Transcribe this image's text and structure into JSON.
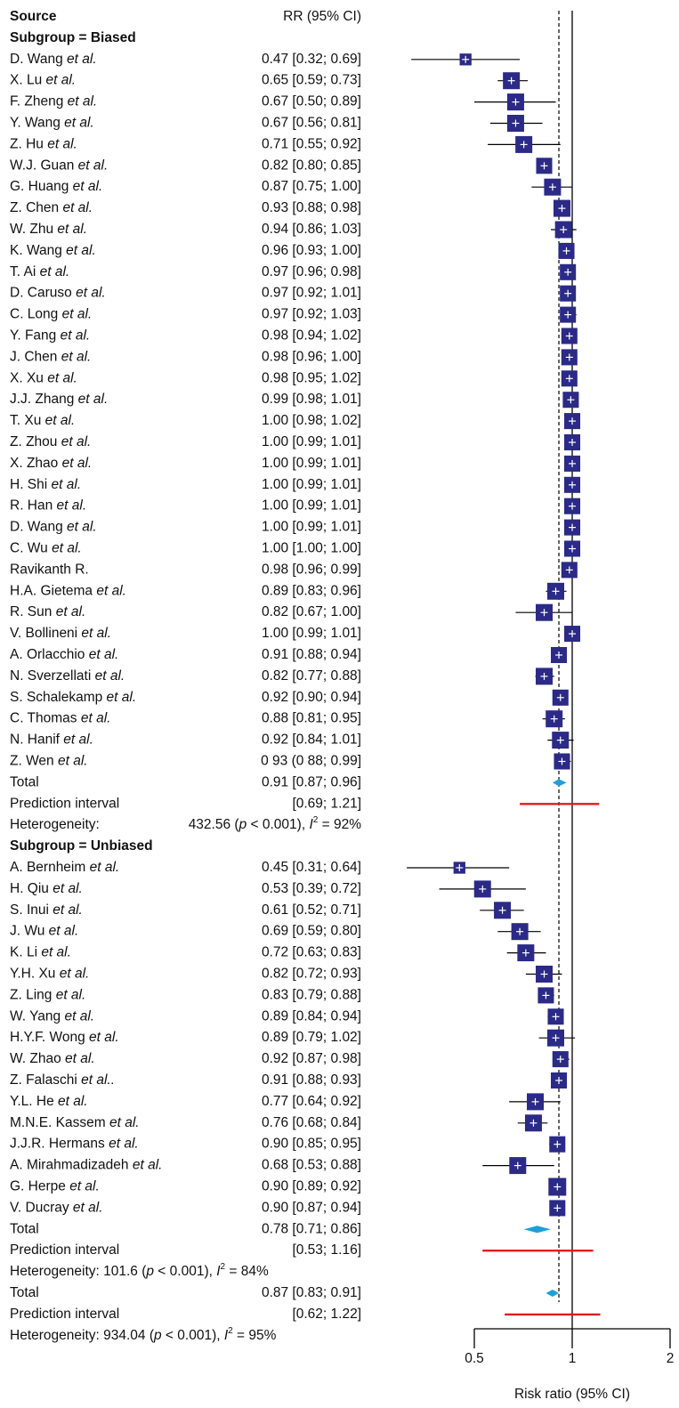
{
  "chart_data": {
    "type": "forest",
    "columns": {
      "source": "Source",
      "effect": "RR (95% CI)"
    },
    "xlabel": "Risk ratio (95% CI)",
    "x_scale": "log",
    "xlim": [
      0.5,
      2
    ],
    "xticks": [
      "0.5",
      "1",
      "2"
    ],
    "null_value": 1,
    "overall_reference": 0.91,
    "colors": {
      "box": "#2b2a87",
      "diamond": "#1e9fd8",
      "prediction": "#e01b1b",
      "line": "#000000"
    },
    "subgroups": [
      {
        "heading": "Subgroup = Biased",
        "studies": [
          {
            "name": "D. Wang",
            "etal": "et al.",
            "ci_text": "0.47 [0.32; 0.69]",
            "rr": 0.47,
            "lo": 0.32,
            "hi": 0.69,
            "w": 0.7
          },
          {
            "name": "X. Lu",
            "etal": "et al.",
            "ci_text": "0.65 [0.59; 0.73]",
            "rr": 0.65,
            "lo": 0.59,
            "hi": 0.73,
            "w": 1.0
          },
          {
            "name": "F. Zheng",
            "etal": "et al.",
            "ci_text": "0.67 [0.50; 0.89]",
            "rr": 0.67,
            "lo": 0.5,
            "hi": 0.89,
            "w": 1.0
          },
          {
            "name": "Y. Wang",
            "etal": "et al.",
            "ci_text": "0.67 [0.56; 0.81]",
            "rr": 0.67,
            "lo": 0.56,
            "hi": 0.81,
            "w": 1.0
          },
          {
            "name": "Z. Hu",
            "etal": "et al.",
            "ci_text": "0.71 [0.55; 0.92]",
            "rr": 0.71,
            "lo": 0.55,
            "hi": 0.92,
            "w": 1.0
          },
          {
            "name": "W.J. Guan",
            "etal": "et al.",
            "ci_text": "0.82 [0.80; 0.85]",
            "rr": 0.82,
            "lo": 0.8,
            "hi": 0.85,
            "w": 0.95
          },
          {
            "name": "G. Huang",
            "etal": "et al.",
            "ci_text": "0.87 [0.75; 1.00]",
            "rr": 0.87,
            "lo": 0.75,
            "hi": 1.0,
            "w": 1.0
          },
          {
            "name": "Z. Chen",
            "etal": "et al.",
            "ci_text": "0.93 [0.88; 0.98]",
            "rr": 0.93,
            "lo": 0.88,
            "hi": 0.98,
            "w": 1.0
          },
          {
            "name": "W. Zhu",
            "etal": "et al.",
            "ci_text": "0.94 [0.86; 1.03]",
            "rr": 0.94,
            "lo": 0.86,
            "hi": 1.03,
            "w": 1.0
          },
          {
            "name": "K. Wang",
            "etal": "et al.",
            "ci_text": "0.96 [0.93; 1.00]",
            "rr": 0.96,
            "lo": 0.93,
            "hi": 1.0,
            "w": 0.95
          },
          {
            "name": "T. Ai",
            "etal": "et al.",
            "ci_text": "0.97 [0.96; 0.98]",
            "rr": 0.97,
            "lo": 0.96,
            "hi": 0.98,
            "w": 0.95
          },
          {
            "name": "D. Caruso",
            "etal": "et al.",
            "ci_text": "0.97 [0.92; 1.01]",
            "rr": 0.97,
            "lo": 0.92,
            "hi": 1.01,
            "w": 0.95
          },
          {
            "name": "C. Long",
            "etal": "et al.",
            "ci_text": "0.97 [0.92; 1.03]",
            "rr": 0.97,
            "lo": 0.92,
            "hi": 1.03,
            "w": 0.95
          },
          {
            "name": "Y. Fang",
            "etal": "et al.",
            "ci_text": "0.98 [0.94; 1.02]",
            "rr": 0.98,
            "lo": 0.94,
            "hi": 1.02,
            "w": 0.95
          },
          {
            "name": "J. Chen",
            "etal": "et al.",
            "ci_text": "0.98 [0.96; 1.00]",
            "rr": 0.98,
            "lo": 0.96,
            "hi": 1.0,
            "w": 0.95
          },
          {
            "name": "X. Xu",
            "etal": "et al.",
            "ci_text": "0.98 [0.95; 1.02]",
            "rr": 0.98,
            "lo": 0.95,
            "hi": 1.02,
            "w": 0.95
          },
          {
            "name": "J.J. Zhang",
            "etal": "et al.",
            "ci_text": "0.99 [0.98; 1.01]",
            "rr": 0.99,
            "lo": 0.98,
            "hi": 1.01,
            "w": 0.95
          },
          {
            "name": "T. Xu",
            "etal": "et al.",
            "ci_text": "1.00 [0.98; 1.02]",
            "rr": 1.0,
            "lo": 0.98,
            "hi": 1.02,
            "w": 0.95
          },
          {
            "name": "Z. Zhou",
            "etal": "et al.",
            "ci_text": "1.00 [0.99; 1.01]",
            "rr": 1.0,
            "lo": 0.99,
            "hi": 1.01,
            "w": 0.95
          },
          {
            "name": "X. Zhao",
            "etal": "et al.",
            "ci_text": "1.00 [0.99; 1.01]",
            "rr": 1.0,
            "lo": 0.99,
            "hi": 1.01,
            "w": 0.95
          },
          {
            "name": "H. Shi",
            "etal": "et al.",
            "ci_text": "1.00 [0.99; 1.01]",
            "rr": 1.0,
            "lo": 0.99,
            "hi": 1.01,
            "w": 0.95
          },
          {
            "name": "R. Han",
            "etal": "et al.",
            "ci_text": "1.00 [0.99; 1.01]",
            "rr": 1.0,
            "lo": 0.99,
            "hi": 1.01,
            "w": 0.95
          },
          {
            "name": "D. Wang",
            "etal": "et al.",
            "ci_text": "1.00 [0.99; 1.01]",
            "rr": 1.0,
            "lo": 0.99,
            "hi": 1.01,
            "w": 0.95
          },
          {
            "name": "C. Wu",
            "etal": "et al.",
            "ci_text": "1.00 [1.00; 1.00]",
            "rr": 1.0,
            "lo": 1.0,
            "hi": 1.0,
            "w": 0.95
          },
          {
            "name": "Ravikanth R.",
            "etal": "",
            "ci_text": "0.98 [0.96; 0.99]",
            "rr": 0.98,
            "lo": 0.96,
            "hi": 0.99,
            "w": 0.95
          },
          {
            "name": "H.A. Gietema",
            "etal": "et al.",
            "ci_text": "0.89 [0.83; 0.96]",
            "rr": 0.89,
            "lo": 0.83,
            "hi": 0.96,
            "w": 1.0
          },
          {
            "name": "R. Sun",
            "etal": "et al.",
            "ci_text": "0.82 [0.67; 1.00]",
            "rr": 0.82,
            "lo": 0.67,
            "hi": 1.0,
            "w": 1.0
          },
          {
            "name": "V. Bollineni",
            "etal": "et al.",
            "ci_text": "1.00 [0.99; 1.01]",
            "rr": 1.0,
            "lo": 0.99,
            "hi": 1.01,
            "w": 0.95
          },
          {
            "name": "A. Orlacchio",
            "etal": "et al.",
            "ci_text": "0.91 [0.88; 0.94]",
            "rr": 0.91,
            "lo": 0.88,
            "hi": 0.94,
            "w": 0.95
          },
          {
            "name": "N. Sverzellati",
            "etal": "et al.",
            "ci_text": "0.82 [0.77; 0.88]",
            "rr": 0.82,
            "lo": 0.77,
            "hi": 0.88,
            "w": 1.0
          },
          {
            "name": "S. Schalekamp",
            "etal": "et al.",
            "ci_text": "0.92 [0.90; 0.94]",
            "rr": 0.92,
            "lo": 0.9,
            "hi": 0.94,
            "w": 0.95
          },
          {
            "name": "C. Thomas",
            "etal": "et al.",
            "ci_text": "0.88 [0.81; 0.95]",
            "rr": 0.88,
            "lo": 0.81,
            "hi": 0.95,
            "w": 1.0
          },
          {
            "name": "N. Hanif",
            "etal": "et al.",
            "ci_text": "0.92 [0.84; 1.01]",
            "rr": 0.92,
            "lo": 0.84,
            "hi": 1.01,
            "w": 1.0
          },
          {
            "name": "Z. Wen",
            "etal": "et al.",
            "ci_text": "0 93 (0 88; 0.99]",
            "rr": 0.93,
            "lo": 0.88,
            "hi": 0.99,
            "w": 0.95
          }
        ],
        "total": {
          "label": "Total",
          "ci_text": "0.91 [0.87; 0.96]",
          "rr": 0.91,
          "lo": 0.87,
          "hi": 0.96
        },
        "prediction": {
          "label": "Prediction interval",
          "ci_text": "[0.69; 1.21]",
          "lo": 0.69,
          "hi": 1.21
        },
        "heterogeneity": {
          "label": "Heterogeneity:",
          "value": "432.56",
          "pvalue": "< 0.001), ",
          "i2": " = 92%"
        }
      },
      {
        "heading": "Subgroup = Unbiased",
        "studies": [
          {
            "name": "A. Bernheim",
            "etal": "et al.",
            "ci_text": "0.45 [0.31; 0.64]",
            "rr": 0.45,
            "lo": 0.31,
            "hi": 0.64,
            "w": 0.7
          },
          {
            "name": "H. Qiu",
            "etal": "et al.",
            "ci_text": "0.53 [0.39; 0.72]",
            "rr": 0.53,
            "lo": 0.39,
            "hi": 0.72,
            "w": 1.0
          },
          {
            "name": "S. Inui",
            "etal": "et al.",
            "ci_text": "0.61 [0.52; 0.71]",
            "rr": 0.61,
            "lo": 0.52,
            "hi": 0.71,
            "w": 1.0
          },
          {
            "name": "J. Wu",
            "etal": "et al.",
            "ci_text": "0.69 [0.59; 0.80]",
            "rr": 0.69,
            "lo": 0.59,
            "hi": 0.8,
            "w": 1.0
          },
          {
            "name": "K. Li",
            "etal": "et al.",
            "ci_text": "0.72 [0.63; 0.83]",
            "rr": 0.72,
            "lo": 0.63,
            "hi": 0.83,
            "w": 1.0
          },
          {
            "name": "Y.H. Xu",
            "etal": "et al.",
            "ci_text": "0.82 [0.72; 0.93]",
            "rr": 0.82,
            "lo": 0.72,
            "hi": 0.93,
            "w": 1.0
          },
          {
            "name": "Z. Ling",
            "etal": "et al.",
            "ci_text": "0.83 [0.79; 0.88]",
            "rr": 0.83,
            "lo": 0.79,
            "hi": 0.88,
            "w": 0.95
          },
          {
            "name": "W. Yang",
            "etal": "et al.",
            "ci_text": "0.89 [0.84; 0.94]",
            "rr": 0.89,
            "lo": 0.84,
            "hi": 0.94,
            "w": 0.95
          },
          {
            "name": "H.Y.F. Wong",
            "etal": "et al.",
            "ci_text": "0.89 [0.79; 1.02]",
            "rr": 0.89,
            "lo": 0.79,
            "hi": 1.02,
            "w": 1.0
          },
          {
            "name": "W. Zhao",
            "etal": "et al.",
            "ci_text": "0.92 [0.87; 0.98]",
            "rr": 0.92,
            "lo": 0.87,
            "hi": 0.98,
            "w": 0.95
          },
          {
            "name": "Z. Falaschi",
            "etal": "et al..",
            "ci_text": "0.91 [0.88; 0.93]",
            "rr": 0.91,
            "lo": 0.88,
            "hi": 0.93,
            "w": 0.95
          },
          {
            "name": "Y.L. He",
            "etal": "et al.",
            "ci_text": "0.77 [0.64; 0.92]",
            "rr": 0.77,
            "lo": 0.64,
            "hi": 0.92,
            "w": 1.0
          },
          {
            "name": "M.N.E. Kassem",
            "etal": "et al.",
            "ci_text": "0.76 [0.68; 0.84]",
            "rr": 0.76,
            "lo": 0.68,
            "hi": 0.84,
            "w": 1.0
          },
          {
            "name": "J.J.R. Hermans",
            "etal": "et al.",
            "ci_text": "0.90 [0.85; 0.95]",
            "rr": 0.9,
            "lo": 0.85,
            "hi": 0.95,
            "w": 0.95
          },
          {
            "name": "A. Mirahmadizadeh",
            "etal": "et al.",
            "ci_text": "0.68 [0.53; 0.88]",
            "rr": 0.68,
            "lo": 0.53,
            "hi": 0.88,
            "w": 1.0
          },
          {
            "name": "G. Herpe",
            "etal": "et al.",
            "ci_text": "0.90 [0.89; 0.92]",
            "rr": 0.9,
            "lo": 0.89,
            "hi": 0.92,
            "w": 1.05
          },
          {
            "name": "V. Ducray",
            "etal": "et al.",
            "ci_text": "0.90 [0.87; 0.94]",
            "rr": 0.9,
            "lo": 0.87,
            "hi": 0.94,
            "w": 0.95
          }
        ],
        "total": {
          "label": "Total",
          "ci_text": "0.78 [0.71; 0.86]",
          "rr": 0.78,
          "lo": 0.71,
          "hi": 0.86
        },
        "prediction": {
          "label": "Prediction interval",
          "ci_text": "[0.53; 1.16]",
          "lo": 0.53,
          "hi": 1.16
        },
        "heterogeneity": {
          "label": "Heterogeneity: ",
          "value": "101.6",
          "pvalue": "< 0.001), ",
          "i2": " = 84%"
        }
      }
    ],
    "overall": {
      "total": {
        "label": "Total",
        "ci_text": "0.87 [0.83; 0.91]",
        "rr": 0.87,
        "lo": 0.83,
        "hi": 0.91
      },
      "prediction": {
        "label": "Prediction interval",
        "ci_text": "[0.62; 1.22]",
        "lo": 0.62,
        "hi": 1.22
      },
      "heterogeneity": {
        "label": "Heterogeneity: ",
        "value": "934.04",
        "pvalue": "< 0.001), ",
        "i2": " = 95%"
      }
    }
  }
}
